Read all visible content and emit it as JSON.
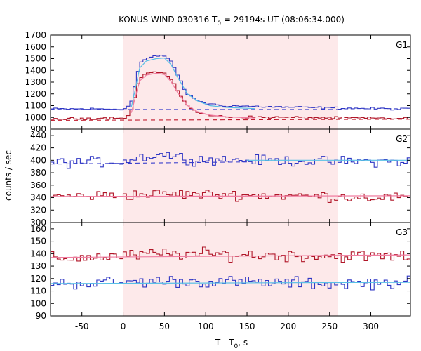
{
  "chart_data": {
    "type": "line",
    "title": {
      "main": "KONUS-WIND 030316 T",
      "sub": "0",
      "rest": " = 29194s UT (08:06:34.000)"
    },
    "ylabel": "counts / sec",
    "xlabel": {
      "main": "T - T",
      "sub": "0",
      "rest": ", s"
    },
    "xlim": [
      -88,
      348
    ],
    "xticks": [
      -50,
      0,
      50,
      100,
      150,
      200,
      250,
      300
    ],
    "highlight_interval": [
      0,
      260
    ],
    "highlight_color": "#fde9ea",
    "colors": {
      "red_series": "#b01628",
      "blue_series": "#2e36c4",
      "red_fit": "#f07ca0",
      "blue_fit": "#58c0e6",
      "red_dashed": "#c0182a",
      "blue_dashed": "#3a3fcc"
    },
    "panels": [
      {
        "label": "G1",
        "ylim": [
          900,
          1700
        ],
        "yticks": [
          900,
          1000,
          1100,
          1200,
          1300,
          1400,
          1500,
          1600,
          1700
        ],
        "bin": 4,
        "noise": 14,
        "series": [
          {
            "color_key": "blue",
            "base": [
              [
                -88,
                1072
              ],
              [
                0,
                1072
              ],
              [
                5,
                1080
              ],
              [
                10,
                1140
              ],
              [
                15,
                1290
              ],
              [
                20,
                1460
              ],
              [
                28,
                1500
              ],
              [
                40,
                1520
              ],
              [
                50,
                1525
              ],
              [
                58,
                1480
              ],
              [
                65,
                1380
              ],
              [
                75,
                1220
              ],
              [
                85,
                1160
              ],
              [
                100,
                1120
              ],
              [
                120,
                1100
              ],
              [
                180,
                1090
              ],
              [
                260,
                1080
              ],
              [
                348,
                1070
              ]
            ]
          },
          {
            "color_key": "red",
            "base": [
              [
                -88,
                985
              ],
              [
                0,
                998
              ],
              [
                5,
                1005
              ],
              [
                10,
                1060
              ],
              [
                15,
                1200
              ],
              [
                20,
                1335
              ],
              [
                28,
                1375
              ],
              [
                40,
                1385
              ],
              [
                50,
                1375
              ],
              [
                58,
                1320
              ],
              [
                65,
                1240
              ],
              [
                75,
                1130
              ],
              [
                85,
                1060
              ],
              [
                100,
                1020
              ],
              [
                130,
                1005
              ],
              [
                348,
                990
              ]
            ]
          }
        ],
        "fits": [
          {
            "color_key": "blue",
            "style": "dashed",
            "points": [
              [
                -88,
                1067
              ],
              [
                348,
                1068
              ]
            ],
            "x_end": 260
          },
          {
            "color_key": "red",
            "style": "dashed",
            "points": [
              [
                -88,
                975
              ],
              [
                348,
                985
              ]
            ]
          },
          {
            "color_key": "blue",
            "style": "solid",
            "points": [
              [
                10,
                1090
              ],
              [
                15,
                1250
              ],
              [
                20,
                1420
              ],
              [
                28,
                1480
              ],
              [
                40,
                1500
              ],
              [
                50,
                1505
              ],
              [
                58,
                1450
              ],
              [
                66,
                1340
              ],
              [
                78,
                1200
              ],
              [
                90,
                1140
              ],
              [
                105,
                1100
              ],
              [
                125,
                1085
              ],
              [
                160,
                1075
              ]
            ]
          },
          {
            "color_key": "red",
            "style": "solid",
            "points": [
              [
                10,
                1040
              ],
              [
                15,
                1180
              ],
              [
                20,
                1310
              ],
              [
                28,
                1360
              ],
              [
                40,
                1375
              ],
              [
                50,
                1365
              ],
              [
                58,
                1305
              ],
              [
                66,
                1210
              ],
              [
                78,
                1100
              ],
              [
                90,
                1050
              ],
              [
                105,
                1020
              ],
              [
                125,
                1005
              ],
              [
                160,
                995
              ]
            ]
          }
        ]
      },
      {
        "label": "G2",
        "ylim": [
          300,
          450
        ],
        "yticks": [
          300,
          320,
          340,
          360,
          380,
          400,
          420,
          440
        ],
        "bin": 4,
        "noise": 12,
        "series": [
          {
            "color_key": "blue",
            "base": [
              [
                -88,
                396
              ],
              [
                0,
                398
              ],
              [
                20,
                405
              ],
              [
                50,
                410
              ],
              [
                80,
                402
              ],
              [
                150,
                400
              ],
              [
                250,
                398
              ],
              [
                348,
                398
              ]
            ]
          },
          {
            "color_key": "red",
            "base": [
              [
                -88,
                342
              ],
              [
                0,
                344
              ],
              [
                50,
                346
              ],
              [
                150,
                344
              ],
              [
                250,
                342
              ],
              [
                348,
                340
              ]
            ]
          }
        ],
        "fits": [
          {
            "color_key": "blue",
            "style": "dashed",
            "points": [
              [
                -88,
                394
              ],
              [
                348,
                400
              ]
            ],
            "x_end": 150
          },
          {
            "color_key": "blue",
            "style": "solid",
            "points": [
              [
                150,
                400
              ],
              [
                348,
                400
              ]
            ]
          },
          {
            "color_key": "red",
            "style": "solid",
            "points": [
              [
                -88,
                342
              ],
              [
                348,
                343
              ]
            ]
          }
        ]
      },
      {
        "label": "G3",
        "ylim": [
          90,
          165
        ],
        "yticks": [
          90,
          100,
          110,
          120,
          130,
          140,
          150,
          160
        ],
        "bin": 4,
        "noise": 7,
        "series": [
          {
            "color_key": "red",
            "base": [
              [
                -88,
                136
              ],
              [
                0,
                138
              ],
              [
                50,
                140
              ],
              [
                150,
                139
              ],
              [
                250,
                138
              ],
              [
                348,
                138
              ]
            ]
          },
          {
            "color_key": "blue",
            "base": [
              [
                -88,
                116
              ],
              [
                0,
                117
              ],
              [
                50,
                118
              ],
              [
                150,
                117
              ],
              [
                250,
                116
              ],
              [
                348,
                117
              ]
            ]
          }
        ],
        "fits": [
          {
            "color_key": "red",
            "style": "solid",
            "points": [
              [
                -88,
                137
              ],
              [
                348,
                139
              ]
            ]
          },
          {
            "color_key": "blue",
            "style": "solid",
            "points": [
              [
                -88,
                116
              ],
              [
                348,
                117
              ]
            ]
          }
        ]
      }
    ]
  }
}
